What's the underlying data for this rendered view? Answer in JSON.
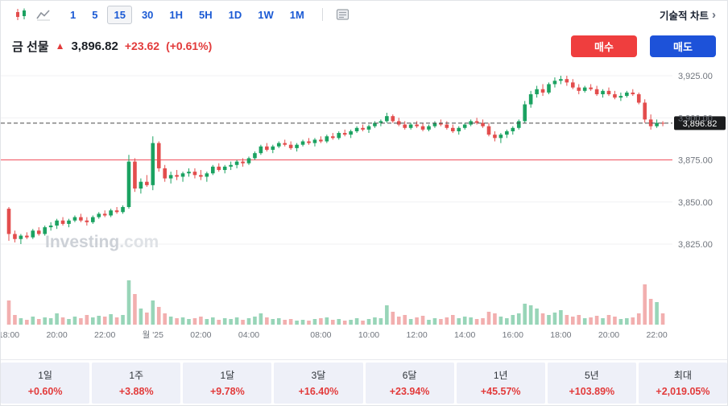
{
  "colors": {
    "up": "#1ba261",
    "down": "#e34d4d",
    "buy": "#ef3e3e",
    "sell": "#1d52d9",
    "accent": "#1b5ad4",
    "change": "#e23b3b",
    "ref_line": "#f23645"
  },
  "toolbar": {
    "timeframes": [
      {
        "label": "1"
      },
      {
        "label": "5"
      },
      {
        "label": "15",
        "active": true
      },
      {
        "label": "30"
      },
      {
        "label": "1H"
      },
      {
        "label": "5H"
      },
      {
        "label": "1D"
      },
      {
        "label": "1W"
      },
      {
        "label": "1M"
      }
    ],
    "technical_link": "기술적 차트"
  },
  "header": {
    "title": "금 선물",
    "price": "3,896.82",
    "change": "+23.62",
    "change_pct": "(+0.61%)",
    "buy_label": "매수",
    "sell_label": "매도"
  },
  "performance": {
    "items": [
      {
        "label": "1일",
        "value": "+0.60%"
      },
      {
        "label": "1주",
        "value": "+3.88%"
      },
      {
        "label": "1달",
        "value": "+9.78%"
      },
      {
        "label": "3달",
        "value": "+16.40%"
      },
      {
        "label": "6달",
        "value": "+23.94%"
      },
      {
        "label": "1년",
        "value": "+45.57%"
      },
      {
        "label": "5년",
        "value": "+103.89%"
      },
      {
        "label": "최대",
        "value": "+2,019.05%"
      }
    ]
  },
  "chart_data": {
    "type": "candlestick",
    "title": "금 선물",
    "interval": "15",
    "watermark": "Investing.com",
    "last_price": 3896.82,
    "price_line": {
      "value": 3896.82,
      "label": "3,896.82"
    },
    "ref_line": {
      "value": 3875,
      "color": "#f23645"
    },
    "ylim": [
      3818,
      3932
    ],
    "y_axis": {
      "ticks": [
        {
          "value": 3925,
          "label": "3,925.00"
        },
        {
          "value": 3900,
          "label": "3,900.00"
        },
        {
          "value": 3875,
          "label": "3,875.00"
        },
        {
          "value": 3850,
          "label": "3,850.00"
        },
        {
          "value": 3825,
          "label": "3,825.00"
        }
      ]
    },
    "x_axis": [
      {
        "i": 0,
        "label": "18:00"
      },
      {
        "i": 8,
        "label": "20:00"
      },
      {
        "i": 16,
        "label": "22:00"
      },
      {
        "i": 24,
        "label": "월 '25"
      },
      {
        "i": 32,
        "label": "02:00"
      },
      {
        "i": 40,
        "label": "04:00"
      },
      {
        "i": 52,
        "label": "08:00"
      },
      {
        "i": 60,
        "label": "10:00"
      },
      {
        "i": 68,
        "label": "12:00"
      },
      {
        "i": 76,
        "label": "14:00"
      },
      {
        "i": 84,
        "label": "16:00"
      },
      {
        "i": 92,
        "label": "18:00"
      },
      {
        "i": 100,
        "label": "20:00"
      },
      {
        "i": 108,
        "label": "22:00"
      }
    ],
    "colors": {
      "up": "#1ba261",
      "down": "#e34d4d"
    },
    "candles": [
      [
        3846,
        3847,
        3827,
        3831,
        30
      ],
      [
        3831,
        3833,
        3826,
        3828,
        12
      ],
      [
        3828,
        3831,
        3825,
        3830,
        8
      ],
      [
        3830,
        3832,
        3828,
        3829,
        6
      ],
      [
        3829,
        3834,
        3828,
        3833,
        10
      ],
      [
        3833,
        3835,
        3830,
        3831,
        7
      ],
      [
        3831,
        3836,
        3830,
        3835,
        9
      ],
      [
        3835,
        3838,
        3833,
        3836,
        8
      ],
      [
        3836,
        3840,
        3834,
        3839,
        14
      ],
      [
        3839,
        3841,
        3836,
        3837,
        9
      ],
      [
        3837,
        3840,
        3835,
        3839,
        7
      ],
      [
        3839,
        3842,
        3838,
        3841,
        10
      ],
      [
        3841,
        3843,
        3838,
        3839,
        8
      ],
      [
        3839,
        3841,
        3836,
        3838,
        12
      ],
      [
        3838,
        3842,
        3837,
        3841,
        9
      ],
      [
        3841,
        3844,
        3840,
        3843,
        11
      ],
      [
        3843,
        3845,
        3841,
        3842,
        10
      ],
      [
        3842,
        3846,
        3841,
        3845,
        13
      ],
      [
        3845,
        3847,
        3843,
        3844,
        9
      ],
      [
        3844,
        3848,
        3843,
        3847,
        12
      ],
      [
        3847,
        3878,
        3846,
        3874,
        55
      ],
      [
        3874,
        3876,
        3856,
        3858,
        38
      ],
      [
        3858,
        3864,
        3855,
        3862,
        20
      ],
      [
        3862,
        3866,
        3859,
        3860,
        15
      ],
      [
        3860,
        3889,
        3857,
        3885,
        30
      ],
      [
        3885,
        3886,
        3868,
        3870,
        22
      ],
      [
        3870,
        3872,
        3862,
        3864,
        14
      ],
      [
        3864,
        3868,
        3861,
        3866,
        10
      ],
      [
        3866,
        3869,
        3863,
        3865,
        8
      ],
      [
        3865,
        3868,
        3862,
        3867,
        9
      ],
      [
        3867,
        3870,
        3865,
        3868,
        7
      ],
      [
        3868,
        3870,
        3864,
        3866,
        8
      ],
      [
        3866,
        3869,
        3863,
        3865,
        10
      ],
      [
        3865,
        3868,
        3862,
        3867,
        7
      ],
      [
        3867,
        3872,
        3866,
        3871,
        9
      ],
      [
        3871,
        3873,
        3868,
        3869,
        6
      ],
      [
        3869,
        3872,
        3867,
        3871,
        8
      ],
      [
        3871,
        3874,
        3869,
        3872,
        7
      ],
      [
        3872,
        3875,
        3870,
        3874,
        9
      ],
      [
        3874,
        3876,
        3871,
        3873,
        6
      ],
      [
        3873,
        3877,
        3872,
        3876,
        8
      ],
      [
        3876,
        3880,
        3875,
        3879,
        10
      ],
      [
        3879,
        3884,
        3878,
        3883,
        14
      ],
      [
        3883,
        3885,
        3880,
        3881,
        9
      ],
      [
        3881,
        3884,
        3879,
        3883,
        7
      ],
      [
        3883,
        3886,
        3882,
        3885,
        8
      ],
      [
        3885,
        3887,
        3883,
        3884,
        6
      ],
      [
        3884,
        3886,
        3881,
        3882,
        7
      ],
      [
        3882,
        3885,
        3880,
        3884,
        5
      ],
      [
        3884,
        3887,
        3883,
        3886,
        6
      ],
      [
        3886,
        3888,
        3884,
        3885,
        5
      ],
      [
        3885,
        3888,
        3883,
        3887,
        7
      ],
      [
        3887,
        3889,
        3885,
        3886,
        8
      ],
      [
        3886,
        3890,
        3885,
        3889,
        9
      ],
      [
        3889,
        3891,
        3887,
        3888,
        6
      ],
      [
        3888,
        3892,
        3887,
        3891,
        7
      ],
      [
        3891,
        3893,
        3889,
        3890,
        5
      ],
      [
        3890,
        3893,
        3888,
        3892,
        6
      ],
      [
        3892,
        3895,
        3891,
        3894,
        8
      ],
      [
        3894,
        3896,
        3892,
        3893,
        5
      ],
      [
        3893,
        3896,
        3891,
        3895,
        7
      ],
      [
        3895,
        3898,
        3894,
        3897,
        9
      ],
      [
        3897,
        3899,
        3895,
        3898,
        8
      ],
      [
        3898,
        3903,
        3897,
        3901,
        24
      ],
      [
        3901,
        3902,
        3897,
        3898,
        16
      ],
      [
        3898,
        3900,
        3895,
        3896,
        10
      ],
      [
        3896,
        3898,
        3893,
        3894,
        12
      ],
      [
        3894,
        3897,
        3893,
        3896,
        7
      ],
      [
        3896,
        3898,
        3894,
        3895,
        9
      ],
      [
        3895,
        3897,
        3892,
        3893,
        11
      ],
      [
        3893,
        3896,
        3892,
        3895,
        6
      ],
      [
        3895,
        3898,
        3894,
        3897,
        8
      ],
      [
        3897,
        3899,
        3895,
        3896,
        7
      ],
      [
        3896,
        3898,
        3893,
        3894,
        9
      ],
      [
        3894,
        3896,
        3891,
        3892,
        12
      ],
      [
        3892,
        3895,
        3890,
        3894,
        8
      ],
      [
        3894,
        3897,
        3893,
        3896,
        10
      ],
      [
        3896,
        3899,
        3895,
        3898,
        9
      ],
      [
        3898,
        3900,
        3896,
        3897,
        7
      ],
      [
        3897,
        3899,
        3894,
        3895,
        8
      ],
      [
        3895,
        3897,
        3889,
        3890,
        16
      ],
      [
        3890,
        3892,
        3886,
        3888,
        14
      ],
      [
        3888,
        3891,
        3885,
        3890,
        10
      ],
      [
        3890,
        3893,
        3888,
        3892,
        8
      ],
      [
        3892,
        3895,
        3890,
        3894,
        12
      ],
      [
        3894,
        3899,
        3893,
        3898,
        14
      ],
      [
        3898,
        3910,
        3897,
        3908,
        26
      ],
      [
        3908,
        3916,
        3906,
        3914,
        24
      ],
      [
        3914,
        3919,
        3912,
        3917,
        20
      ],
      [
        3917,
        3920,
        3913,
        3915,
        14
      ],
      [
        3915,
        3921,
        3914,
        3920,
        12
      ],
      [
        3920,
        3924,
        3918,
        3922,
        15
      ],
      [
        3922,
        3925,
        3920,
        3923,
        18
      ],
      [
        3923,
        3925,
        3919,
        3921,
        12
      ],
      [
        3921,
        3923,
        3917,
        3918,
        10
      ],
      [
        3918,
        3920,
        3914,
        3916,
        12
      ],
      [
        3916,
        3919,
        3915,
        3918,
        8
      ],
      [
        3918,
        3920,
        3916,
        3917,
        9
      ],
      [
        3917,
        3919,
        3913,
        3914,
        11
      ],
      [
        3914,
        3917,
        3912,
        3916,
        8
      ],
      [
        3916,
        3918,
        3913,
        3914,
        12
      ],
      [
        3914,
        3916,
        3911,
        3912,
        10
      ],
      [
        3912,
        3915,
        3910,
        3913,
        7
      ],
      [
        3913,
        3916,
        3912,
        3915,
        8
      ],
      [
        3915,
        3917,
        3913,
        3914,
        9
      ],
      [
        3914,
        3915,
        3908,
        3909,
        14
      ],
      [
        3909,
        3911,
        3897,
        3899,
        50
      ],
      [
        3899,
        3902,
        3893,
        3895,
        32
      ],
      [
        3895,
        3899,
        3894,
        3897,
        28
      ],
      [
        3897,
        3898,
        3895,
        3896.82,
        14
      ]
    ]
  }
}
